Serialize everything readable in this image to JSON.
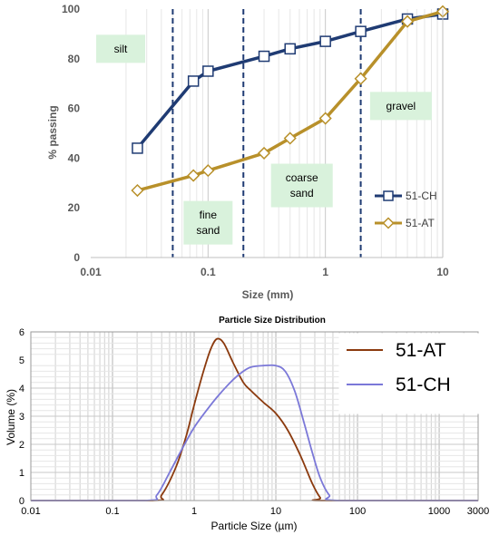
{
  "chart_data": [
    {
      "type": "line",
      "title": "",
      "xlabel": "Size (mm)",
      "ylabel": "% passing",
      "xscale": "log",
      "xlim": [
        0.01,
        10
      ],
      "ylim": [
        0,
        100
      ],
      "xticks": [
        0.01,
        0.1,
        1,
        10
      ],
      "xtick_labels": [
        "0.01",
        "0.1",
        "1",
        "10"
      ],
      "yticks": [
        0,
        20,
        40,
        60,
        80,
        100
      ],
      "ytick_labels": [
        "0",
        "20",
        "40",
        "60",
        "80",
        "100"
      ],
      "grid": "vertical minor log grid",
      "legend_position": "right",
      "boundaries": [
        0.05,
        0.2,
        2
      ],
      "zones": [
        {
          "label": "silt",
          "x": 0.018,
          "y": 84
        },
        {
          "label": "fine\nsand",
          "x": 0.1,
          "y": 14
        },
        {
          "label": "coarse\nsand",
          "x": 0.63,
          "y": 29
        },
        {
          "label": "gravel",
          "x": 4.4,
          "y": 61
        }
      ],
      "series": [
        {
          "name": "51-CH",
          "color": "#1f3b73",
          "marker": "square",
          "x": [
            0.025,
            0.075,
            0.1,
            0.3,
            0.5,
            1,
            2,
            5,
            10
          ],
          "y": [
            44,
            71,
            75,
            81,
            84,
            87,
            91,
            96,
            98
          ]
        },
        {
          "name": "51-AT",
          "color": "#b8902a",
          "marker": "diamond",
          "x": [
            0.025,
            0.075,
            0.1,
            0.3,
            0.5,
            1,
            2,
            5,
            10
          ],
          "y": [
            27,
            33,
            35,
            42,
            48,
            56,
            72,
            95,
            99
          ]
        }
      ]
    },
    {
      "type": "line",
      "title": "Particle Size Distribution",
      "xlabel": "Particle Size (µm)",
      "ylabel": "Volume (%)",
      "xscale": "log",
      "xlim": [
        0.01,
        3000
      ],
      "ylim": [
        0,
        6
      ],
      "xticks": [
        0.01,
        0.1,
        1,
        10,
        100,
        1000,
        3000
      ],
      "xtick_labels": [
        "0.01",
        "0.1",
        "1",
        "10",
        "100",
        "1000",
        "3000"
      ],
      "yticks": [
        0,
        1,
        2,
        3,
        4,
        5,
        6
      ],
      "ytick_labels": [
        "0",
        "1",
        "2",
        "3",
        "4",
        "5",
        "6"
      ],
      "grid": "log grid, both axes",
      "legend_position": "top-right",
      "series": [
        {
          "name": "51-AT",
          "color": "#8b3a0e",
          "x": [
            0.01,
            0.3,
            0.4,
            0.6,
            0.8,
            1,
            1.3,
            1.6,
            1.9,
            2.3,
            3,
            4,
            5,
            7,
            10,
            14,
            20,
            28,
            35,
            40,
            3000
          ],
          "y": [
            0,
            0,
            0.2,
            1.2,
            2.3,
            3.4,
            4.6,
            5.4,
            5.75,
            5.6,
            4.9,
            4.2,
            3.9,
            3.5,
            3.1,
            2.5,
            1.6,
            0.6,
            0.1,
            0,
            0
          ]
        },
        {
          "name": "51-CH",
          "color": "#7b78d8",
          "x": [
            0.01,
            0.25,
            0.35,
            0.5,
            0.7,
            1,
            1.5,
            2,
            3,
            4,
            5,
            7,
            10,
            13,
            17,
            22,
            28,
            35,
            45,
            60,
            3000
          ],
          "y": [
            0,
            0,
            0.2,
            1,
            1.8,
            2.6,
            3.3,
            3.75,
            4.3,
            4.6,
            4.75,
            4.8,
            4.8,
            4.6,
            3.9,
            2.8,
            1.7,
            0.8,
            0.2,
            0,
            0
          ]
        }
      ]
    }
  ]
}
